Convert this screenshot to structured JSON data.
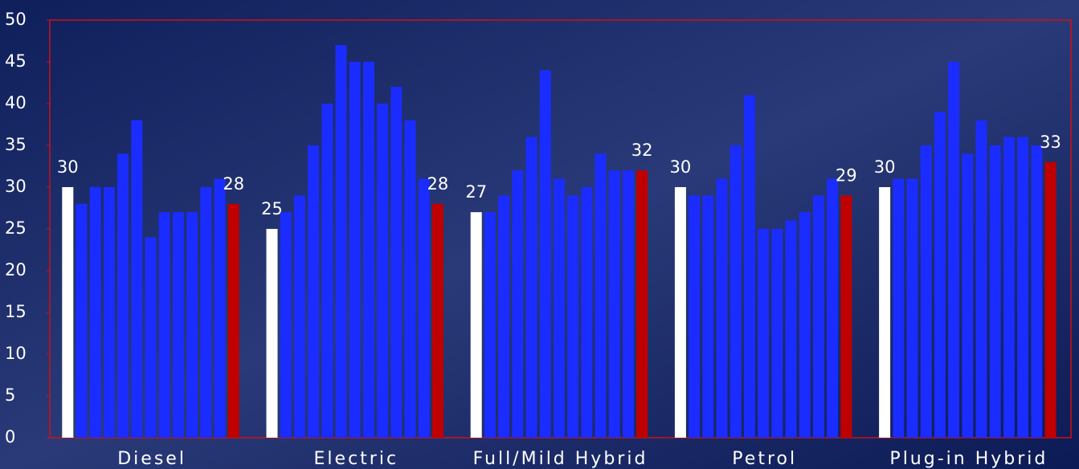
{
  "chart_data": {
    "type": "bar",
    "categories": [
      "Diesel",
      "Electric",
      "Full/Mild Hybrid",
      "Petrol",
      "Plug-in Hybrid"
    ],
    "series": [
      {
        "color": "#ffffff",
        "show_labels": true,
        "values": [
          30,
          25,
          27,
          30,
          30
        ]
      },
      {
        "color": "#1a2cff",
        "values": [
          28,
          27,
          27,
          29,
          31
        ]
      },
      {
        "color": "#1a2cff",
        "values": [
          30,
          29,
          29,
          29,
          31
        ]
      },
      {
        "color": "#1a2cff",
        "values": [
          30,
          35,
          32,
          31,
          35
        ]
      },
      {
        "color": "#1a2cff",
        "values": [
          34,
          40,
          36,
          35,
          39
        ]
      },
      {
        "color": "#1a2cff",
        "values": [
          38,
          47,
          44,
          41,
          45
        ]
      },
      {
        "color": "#1a2cff",
        "values": [
          24,
          45,
          31,
          25,
          34
        ]
      },
      {
        "color": "#1a2cff",
        "values": [
          27,
          45,
          29,
          25,
          38
        ]
      },
      {
        "color": "#1a2cff",
        "values": [
          27,
          40,
          30,
          26,
          35
        ]
      },
      {
        "color": "#1a2cff",
        "values": [
          27,
          42,
          34,
          27,
          36
        ]
      },
      {
        "color": "#1a2cff",
        "values": [
          30,
          38,
          32,
          29,
          36
        ]
      },
      {
        "color": "#1a2cff",
        "values": [
          31,
          31,
          32,
          31,
          35
        ]
      },
      {
        "color": "#c00000",
        "show_labels": true,
        "values": [
          28,
          28,
          32,
          29,
          33
        ]
      }
    ],
    "ylim": [
      0,
      50
    ],
    "yticks": [
      0,
      5,
      10,
      15,
      20,
      25,
      30,
      35,
      40,
      45,
      50
    ]
  }
}
